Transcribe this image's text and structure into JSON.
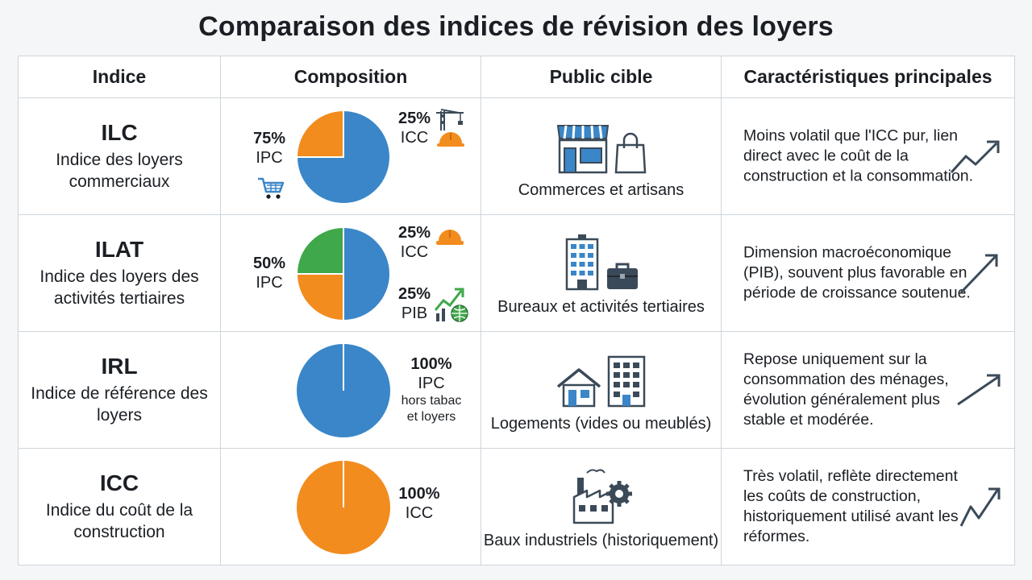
{
  "title": "Comparaison des indices de révision des loyers",
  "headers": [
    "Indice",
    "Composition",
    "Public cible",
    "Caractéristiques principales"
  ],
  "colors": {
    "ipc": "#3a86c8",
    "icc": "#f28c1e",
    "pib": "#3fa84a",
    "border": "#cfd5db",
    "trend": "#3b4a58"
  },
  "rows": [
    {
      "code": "ILC",
      "name": "Indice des loyers commerciaux",
      "labels": [
        {
          "pct": "75%",
          "name": "IPC",
          "icon": "cart-icon"
        },
        {
          "pct": "25%",
          "name": "ICC",
          "icon": "crane-helmet-icon"
        }
      ],
      "public": "Commerces et artisans",
      "public_icons": [
        "shop-icon",
        "shopping-bag-icon"
      ],
      "text": "Moins volatil que l'ICC pur, lien direct avec le coût de la construction et la consommation."
    },
    {
      "code": "ILAT",
      "name": "Indice des loyers des activités tertiaires",
      "labels": [
        {
          "pct": "50%",
          "name": "IPC"
        },
        {
          "pct": "25%",
          "name": "ICC",
          "icon": "helmet-icon"
        },
        {
          "pct": "25%",
          "name": "PIB",
          "icon": "growth-globe-icon"
        }
      ],
      "public": "Bureaux et activités tertiaires",
      "public_icons": [
        "office-building-icon",
        "briefcase-icon"
      ],
      "text": "Dimension macroéconomique (PIB), souvent plus favorable en période de croissance soutenue."
    },
    {
      "code": "IRL",
      "name": "Indice de référence des loyers",
      "labels": [
        {
          "pct": "100%",
          "name": "IPC",
          "sub": "hors tabac et loyers"
        }
      ],
      "public": "Logements (vides ou meublés)",
      "public_icons": [
        "house-icon",
        "apartment-building-icon"
      ],
      "text": "Repose uniquement sur la consommation des ménages, évolution généralement plus stable et modérée."
    },
    {
      "code": "ICC",
      "name": "Indice du coût de la construction",
      "labels": [
        {
          "pct": "100%",
          "name": "ICC"
        }
      ],
      "public": "Baux industriels (historiquement)",
      "public_icons": [
        "factory-gear-icon"
      ],
      "text": "Très volatil, reflète directement les coûts de construction, historiquement utilisé avant les réformes."
    }
  ],
  "chart_data": [
    {
      "type": "pie",
      "title": "ILC",
      "categories": [
        "IPC",
        "ICC"
      ],
      "values": [
        75,
        25
      ],
      "colors": [
        "#3a86c8",
        "#f28c1e"
      ]
    },
    {
      "type": "pie",
      "title": "ILAT",
      "categories": [
        "IPC",
        "ICC",
        "PIB"
      ],
      "values": [
        50,
        25,
        25
      ],
      "colors": [
        "#3a86c8",
        "#f28c1e",
        "#3fa84a"
      ]
    },
    {
      "type": "pie",
      "title": "IRL",
      "categories": [
        "IPC"
      ],
      "values": [
        100
      ],
      "colors": [
        "#3a86c8"
      ]
    },
    {
      "type": "pie",
      "title": "ICC",
      "categories": [
        "ICC"
      ],
      "values": [
        100
      ],
      "colors": [
        "#f28c1e"
      ]
    }
  ]
}
